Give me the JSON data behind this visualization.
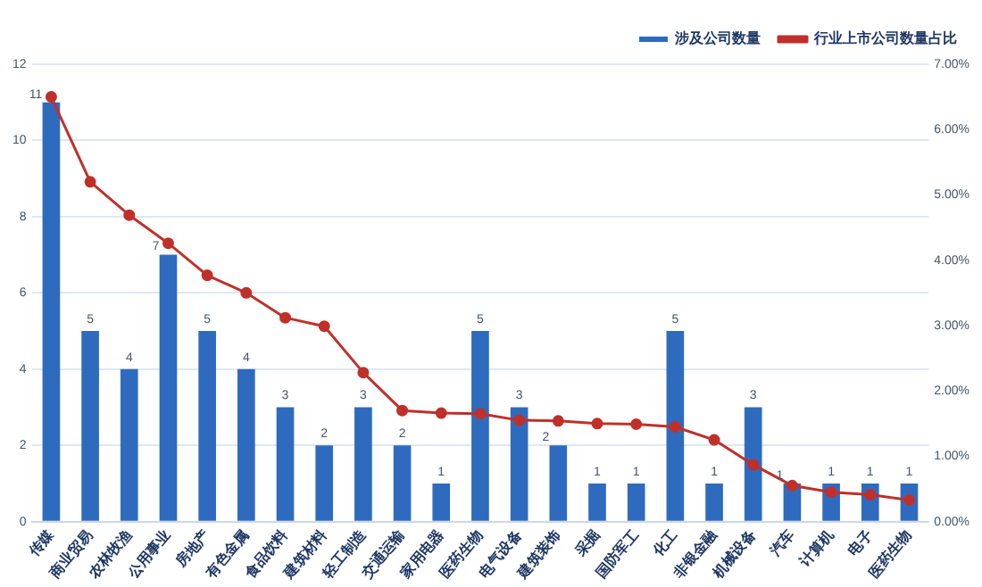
{
  "chart_data": {
    "type": "bar",
    "categories": [
      "传媒",
      "商业贸易",
      "农林牧渔",
      "公用事业",
      "房地产",
      "有色金属",
      "食品饮料",
      "建筑材料",
      "轻工制造",
      "交通运输",
      "家用电器",
      "医药生物",
      "电气设备",
      "建筑装饰",
      "采掘",
      "国防军工",
      "化工",
      "非银金融",
      "机械设备",
      "汽车",
      "计算机",
      "电子",
      "医药生物"
    ],
    "series": [
      {
        "name": "涉及公司数量",
        "color": "#2e6bbf",
        "values": [
          11,
          5,
          4,
          7,
          5,
          4,
          3,
          2,
          3,
          2,
          1,
          5,
          3,
          2,
          1,
          1,
          5,
          1,
          3,
          1,
          1,
          1,
          1
        ],
        "value_labels": [
          "11",
          "5",
          "4",
          "7",
          "5",
          "4",
          "3",
          "2",
          "3",
          "2",
          "1",
          "5",
          "3",
          "2",
          "1",
          "1",
          "5",
          "1",
          "3",
          "1",
          "1",
          "1",
          "1"
        ]
      },
      {
        "name": "行业上市公司数量占比",
        "type": "line",
        "axis": "y2",
        "color": "#c0302a",
        "marker": "circle",
        "values": [
          6.5,
          5.2,
          4.69,
          4.26,
          3.77,
          3.5,
          3.12,
          2.99,
          2.28,
          1.7,
          1.66,
          1.65,
          1.55,
          1.54,
          1.5,
          1.49,
          1.45,
          1.25,
          0.87,
          0.55,
          0.45,
          0.41,
          0.33
        ]
      }
    ],
    "ylim": [
      0,
      12
    ],
    "yticks": [
      0,
      2,
      4,
      6,
      8,
      10,
      12
    ],
    "y2lim": [
      0,
      7
    ],
    "y2ticks": [
      {
        "value": 0,
        "label": "0.00%"
      },
      {
        "value": 1,
        "label": "1.00%"
      },
      {
        "value": 2,
        "label": "2.00%"
      },
      {
        "value": 3,
        "label": "3.00%"
      },
      {
        "value": 4,
        "label": "4.00%"
      },
      {
        "value": 5,
        "label": "5.00%"
      },
      {
        "value": 6,
        "label": "6.00%"
      },
      {
        "value": 7,
        "label": "7.00%"
      }
    ],
    "grid": "y",
    "legend": "top right"
  }
}
